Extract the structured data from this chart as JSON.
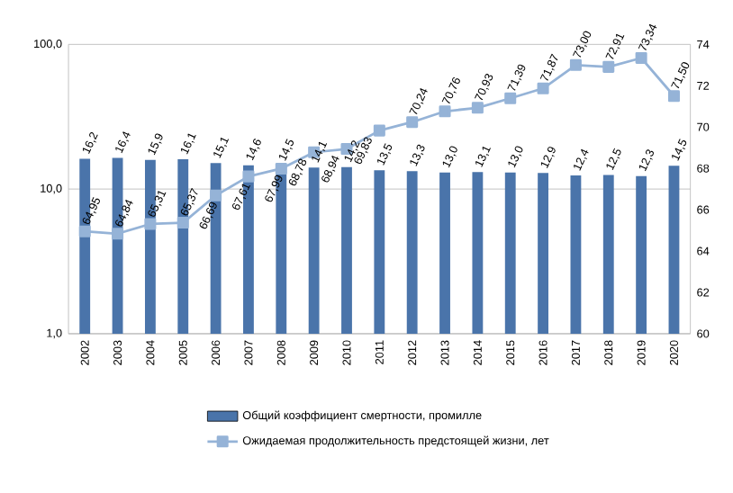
{
  "chart_data": {
    "type": "bar",
    "categories": [
      "2002",
      "2003",
      "2004",
      "2005",
      "2006",
      "2007",
      "2008",
      "2009",
      "2010",
      "2011",
      "2012",
      "2013",
      "2014",
      "2015",
      "2016",
      "2017",
      "2018",
      "2019",
      "2020"
    ],
    "series": [
      {
        "name": "Общий коэффициент смертности, промилле",
        "color": "#4a74aa",
        "values": [
          16.2,
          16.4,
          15.9,
          16.1,
          15.1,
          14.6,
          14.5,
          14.1,
          14.2,
          13.5,
          13.3,
          13.0,
          13.1,
          13.0,
          12.9,
          12.4,
          12.5,
          12.3,
          14.5
        ],
        "value_labels": [
          "16,2",
          "16,4",
          "15,9",
          "16,1",
          "15,1",
          "14,6",
          "14,5",
          "14,1",
          "14,2",
          "13,5",
          "13,3",
          "13,0",
          "13,1",
          "13,0",
          "12,9",
          "12,4",
          "12,5",
          "12,3",
          "14,5"
        ]
      },
      {
        "name": "Ожидаемая продолжительность предстоящей жизни, лет",
        "type": "line",
        "axis": "y2",
        "color": "#95b3d7",
        "marker": "square",
        "values": [
          64.95,
          64.84,
          65.31,
          65.37,
          66.69,
          67.61,
          67.99,
          68.78,
          68.94,
          69.83,
          70.24,
          70.76,
          70.93,
          71.39,
          71.87,
          73.0,
          72.91,
          73.34,
          71.5
        ],
        "value_labels": [
          "64,95",
          "64,84",
          "65,31",
          "65,37",
          "66,69",
          "67,61",
          "67,99",
          "68,78",
          "68,94",
          "69,83",
          "70,24",
          "70,76",
          "70,93",
          "71,39",
          "71,87",
          "73,00",
          "72,91",
          "73,34",
          "71,50"
        ]
      }
    ],
    "log": "y",
    "ylim": [
      1,
      100
    ],
    "yticks": [
      {
        "value": 1,
        "label": "1,0"
      },
      {
        "value": 10,
        "label": "10,0"
      },
      {
        "value": 100,
        "label": "100,0"
      }
    ],
    "y2lim": [
      60,
      74
    ],
    "y2ticks": [
      60,
      62,
      64,
      66,
      68,
      70,
      72,
      74
    ],
    "grid": "y",
    "legend": "bottom"
  }
}
